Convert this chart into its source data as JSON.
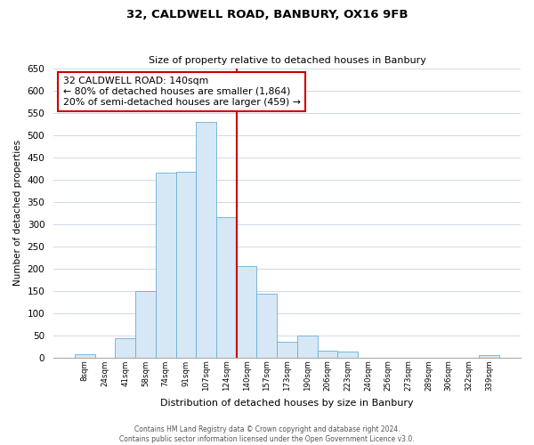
{
  "title1": "32, CALDWELL ROAD, BANBURY, OX16 9FB",
  "title2": "Size of property relative to detached houses in Banbury",
  "xlabel": "Distribution of detached houses by size in Banbury",
  "ylabel": "Number of detached properties",
  "bin_labels": [
    "8sqm",
    "24sqm",
    "41sqm",
    "58sqm",
    "74sqm",
    "91sqm",
    "107sqm",
    "124sqm",
    "140sqm",
    "157sqm",
    "173sqm",
    "190sqm",
    "206sqm",
    "223sqm",
    "240sqm",
    "256sqm",
    "273sqm",
    "289sqm",
    "306sqm",
    "322sqm",
    "339sqm"
  ],
  "bar_heights": [
    8,
    0,
    44,
    150,
    416,
    417,
    530,
    315,
    205,
    143,
    35,
    49,
    15,
    14,
    0,
    0,
    0,
    0,
    0,
    0,
    6
  ],
  "bar_color": "#d6e8f5",
  "bar_edge_color": "#6aaed6",
  "vline_color": "#cc0000",
  "annotation_title": "32 CALDWELL ROAD: 140sqm",
  "annotation_line1": "← 80% of detached houses are smaller (1,864)",
  "annotation_line2": "20% of semi-detached houses are larger (459) →",
  "annotation_box_edge": "#cc0000",
  "ylim": [
    0,
    650
  ],
  "yticks": [
    0,
    50,
    100,
    150,
    200,
    250,
    300,
    350,
    400,
    450,
    500,
    550,
    600,
    650
  ],
  "footer1": "Contains HM Land Registry data © Crown copyright and database right 2024.",
  "footer2": "Contains public sector information licensed under the Open Government Licence v3.0.",
  "bg_color": "#ffffff",
  "grid_color": "#d0d8e8"
}
